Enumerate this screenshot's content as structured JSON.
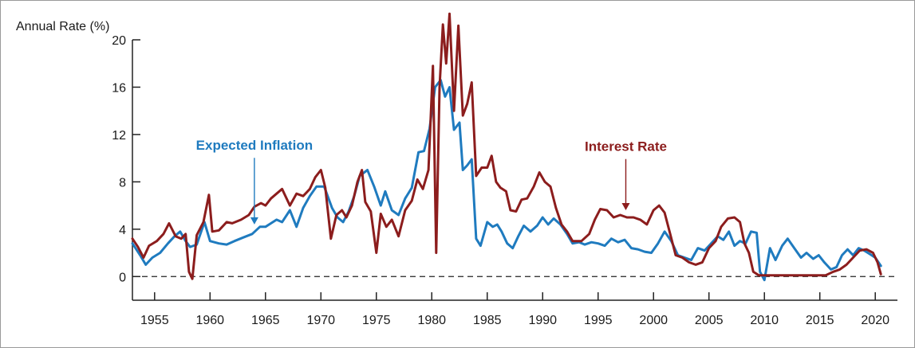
{
  "chart_data": {
    "type": "line",
    "ylabel": "Annual Rate (%)",
    "xlim": [
      1953,
      2022
    ],
    "ylim": [
      -2,
      20
    ],
    "yticks": [
      0,
      4,
      8,
      12,
      16,
      20
    ],
    "xticks": [
      1955,
      1960,
      1965,
      1970,
      1975,
      1980,
      1985,
      1990,
      1995,
      2000,
      2005,
      2010,
      2015,
      2020
    ],
    "zero_line": "dashed",
    "grid": false,
    "legend": "direct labels",
    "series": [
      {
        "name": "Expected Inflation",
        "color": "#1f7bbf",
        "label_at": [
          1964,
          10.7
        ],
        "arrow_to": [
          1964,
          4.4
        ],
        "points": [
          [
            1953.0,
            2.8
          ],
          [
            1953.7,
            1.8
          ],
          [
            1954.2,
            1.0
          ],
          [
            1954.8,
            1.6
          ],
          [
            1955.5,
            2.0
          ],
          [
            1956.2,
            2.8
          ],
          [
            1956.8,
            3.4
          ],
          [
            1957.3,
            3.8
          ],
          [
            1957.8,
            3.0
          ],
          [
            1958.2,
            2.5
          ],
          [
            1958.8,
            2.7
          ],
          [
            1959.5,
            4.6
          ],
          [
            1960.0,
            3.0
          ],
          [
            1960.8,
            2.8
          ],
          [
            1961.5,
            2.7
          ],
          [
            1962.2,
            3.0
          ],
          [
            1963.0,
            3.3
          ],
          [
            1963.8,
            3.6
          ],
          [
            1964.5,
            4.2
          ],
          [
            1965.0,
            4.2
          ],
          [
            1965.5,
            4.5
          ],
          [
            1966.0,
            4.8
          ],
          [
            1966.5,
            4.6
          ],
          [
            1967.2,
            5.6
          ],
          [
            1967.8,
            4.2
          ],
          [
            1968.4,
            5.8
          ],
          [
            1969.0,
            6.8
          ],
          [
            1969.6,
            7.6
          ],
          [
            1970.3,
            7.6
          ],
          [
            1971.0,
            5.8
          ],
          [
            1971.5,
            5.0
          ],
          [
            1972.0,
            4.6
          ],
          [
            1972.5,
            5.5
          ],
          [
            1973.0,
            6.8
          ],
          [
            1973.5,
            8.5
          ],
          [
            1974.2,
            9.0
          ],
          [
            1974.8,
            7.6
          ],
          [
            1975.4,
            6.0
          ],
          [
            1975.8,
            7.2
          ],
          [
            1976.4,
            5.6
          ],
          [
            1977.0,
            5.2
          ],
          [
            1977.6,
            6.6
          ],
          [
            1978.2,
            7.5
          ],
          [
            1978.8,
            10.5
          ],
          [
            1979.3,
            10.6
          ],
          [
            1979.8,
            12.5
          ],
          [
            1980.3,
            16.0
          ],
          [
            1980.8,
            16.6
          ],
          [
            1981.2,
            15.2
          ],
          [
            1981.6,
            16.0
          ],
          [
            1982.0,
            12.4
          ],
          [
            1982.5,
            13.0
          ],
          [
            1982.8,
            9.0
          ],
          [
            1983.2,
            9.4
          ],
          [
            1983.6,
            9.9
          ],
          [
            1984.0,
            3.2
          ],
          [
            1984.4,
            2.6
          ],
          [
            1985.0,
            4.6
          ],
          [
            1985.5,
            4.2
          ],
          [
            1985.9,
            4.4
          ],
          [
            1986.3,
            3.8
          ],
          [
            1986.8,
            2.8
          ],
          [
            1987.3,
            2.4
          ],
          [
            1987.8,
            3.4
          ],
          [
            1988.3,
            4.3
          ],
          [
            1988.9,
            3.8
          ],
          [
            1989.5,
            4.3
          ],
          [
            1990.0,
            5.0
          ],
          [
            1990.5,
            4.4
          ],
          [
            1991.0,
            4.9
          ],
          [
            1991.6,
            4.4
          ],
          [
            1992.2,
            3.6
          ],
          [
            1992.7,
            2.8
          ],
          [
            1993.3,
            2.9
          ],
          [
            1993.8,
            2.7
          ],
          [
            1994.4,
            2.9
          ],
          [
            1995.0,
            2.8
          ],
          [
            1995.6,
            2.6
          ],
          [
            1996.2,
            3.2
          ],
          [
            1996.8,
            2.9
          ],
          [
            1997.4,
            3.1
          ],
          [
            1998.0,
            2.4
          ],
          [
            1998.6,
            2.3
          ],
          [
            1999.2,
            2.1
          ],
          [
            1999.8,
            2.0
          ],
          [
            2000.4,
            2.8
          ],
          [
            2001.0,
            3.8
          ],
          [
            2001.6,
            3.0
          ],
          [
            2002.2,
            1.8
          ],
          [
            2002.8,
            1.6
          ],
          [
            2003.4,
            1.4
          ],
          [
            2004.0,
            2.4
          ],
          [
            2004.6,
            2.2
          ],
          [
            2005.2,
            2.8
          ],
          [
            2005.8,
            3.4
          ],
          [
            2006.3,
            3.1
          ],
          [
            2006.8,
            3.8
          ],
          [
            2007.3,
            2.6
          ],
          [
            2007.8,
            3.0
          ],
          [
            2008.3,
            2.8
          ],
          [
            2008.8,
            3.8
          ],
          [
            2009.3,
            3.7
          ],
          [
            2009.6,
            0.4
          ],
          [
            2010.0,
            -0.3
          ],
          [
            2010.5,
            2.4
          ],
          [
            2011.0,
            1.4
          ],
          [
            2011.6,
            2.6
          ],
          [
            2012.1,
            3.2
          ],
          [
            2012.7,
            2.4
          ],
          [
            2013.3,
            1.6
          ],
          [
            2013.8,
            2.0
          ],
          [
            2014.4,
            1.5
          ],
          [
            2014.9,
            1.8
          ],
          [
            2015.4,
            1.2
          ],
          [
            2016.0,
            0.6
          ],
          [
            2016.5,
            0.8
          ],
          [
            2017.0,
            1.8
          ],
          [
            2017.5,
            2.3
          ],
          [
            2018.0,
            1.8
          ],
          [
            2018.5,
            2.4
          ],
          [
            2019.0,
            2.2
          ],
          [
            2019.5,
            1.9
          ],
          [
            2020.0,
            1.6
          ],
          [
            2020.5,
            0.9
          ]
        ]
      },
      {
        "name": "Interest Rate",
        "color": "#8c1d1d",
        "label_at": [
          1997.5,
          10.6
        ],
        "arrow_to": [
          1997.5,
          5.6
        ],
        "points": [
          [
            1953.0,
            3.2
          ],
          [
            1953.5,
            2.5
          ],
          [
            1954.0,
            1.6
          ],
          [
            1954.5,
            2.6
          ],
          [
            1955.2,
            3.0
          ],
          [
            1955.8,
            3.6
          ],
          [
            1956.3,
            4.5
          ],
          [
            1956.9,
            3.4
          ],
          [
            1957.4,
            3.2
          ],
          [
            1957.8,
            3.6
          ],
          [
            1958.1,
            0.4
          ],
          [
            1958.4,
            -0.2
          ],
          [
            1958.8,
            3.5
          ],
          [
            1959.4,
            4.6
          ],
          [
            1959.9,
            6.9
          ],
          [
            1960.2,
            3.8
          ],
          [
            1960.8,
            3.9
          ],
          [
            1961.5,
            4.6
          ],
          [
            1962.0,
            4.5
          ],
          [
            1962.8,
            4.8
          ],
          [
            1963.5,
            5.2
          ],
          [
            1964.0,
            5.9
          ],
          [
            1964.6,
            6.2
          ],
          [
            1965.0,
            6.0
          ],
          [
            1965.5,
            6.6
          ],
          [
            1966.0,
            7.0
          ],
          [
            1966.5,
            7.4
          ],
          [
            1967.2,
            6.0
          ],
          [
            1967.8,
            7.0
          ],
          [
            1968.4,
            6.8
          ],
          [
            1969.0,
            7.4
          ],
          [
            1969.5,
            8.4
          ],
          [
            1970.0,
            9.0
          ],
          [
            1970.4,
            7.5
          ],
          [
            1970.9,
            3.2
          ],
          [
            1971.4,
            5.2
          ],
          [
            1971.9,
            5.6
          ],
          [
            1972.3,
            5.0
          ],
          [
            1972.8,
            6.0
          ],
          [
            1973.3,
            8.0
          ],
          [
            1973.7,
            9.0
          ],
          [
            1974.0,
            6.3
          ],
          [
            1974.5,
            5.5
          ],
          [
            1975.0,
            2.0
          ],
          [
            1975.4,
            5.3
          ],
          [
            1975.9,
            4.2
          ],
          [
            1976.4,
            4.8
          ],
          [
            1977.0,
            3.4
          ],
          [
            1977.6,
            5.6
          ],
          [
            1978.2,
            6.4
          ],
          [
            1978.7,
            8.2
          ],
          [
            1979.2,
            7.4
          ],
          [
            1979.7,
            9.0
          ],
          [
            1980.1,
            17.8
          ],
          [
            1980.4,
            2.0
          ],
          [
            1980.7,
            16.0
          ],
          [
            1981.0,
            21.3
          ],
          [
            1981.3,
            18.0
          ],
          [
            1981.6,
            22.2
          ],
          [
            1982.0,
            14.0
          ],
          [
            1982.4,
            21.2
          ],
          [
            1982.8,
            13.6
          ],
          [
            1983.2,
            14.6
          ],
          [
            1983.6,
            16.4
          ],
          [
            1984.0,
            8.5
          ],
          [
            1984.5,
            9.2
          ],
          [
            1985.0,
            9.2
          ],
          [
            1985.4,
            10.2
          ],
          [
            1985.8,
            8.0
          ],
          [
            1986.2,
            7.5
          ],
          [
            1986.7,
            7.2
          ],
          [
            1987.1,
            5.6
          ],
          [
            1987.6,
            5.5
          ],
          [
            1988.1,
            6.5
          ],
          [
            1988.6,
            6.6
          ],
          [
            1989.2,
            7.6
          ],
          [
            1989.7,
            8.8
          ],
          [
            1990.2,
            8.0
          ],
          [
            1990.7,
            7.6
          ],
          [
            1991.2,
            5.8
          ],
          [
            1991.7,
            4.4
          ],
          [
            1992.2,
            3.8
          ],
          [
            1992.7,
            3.0
          ],
          [
            1993.5,
            3.0
          ],
          [
            1994.2,
            3.6
          ],
          [
            1994.7,
            4.8
          ],
          [
            1995.2,
            5.7
          ],
          [
            1995.8,
            5.6
          ],
          [
            1996.4,
            5.0
          ],
          [
            1997.0,
            5.2
          ],
          [
            1997.6,
            5.0
          ],
          [
            1998.2,
            5.0
          ],
          [
            1998.8,
            4.8
          ],
          [
            1999.4,
            4.4
          ],
          [
            2000.0,
            5.6
          ],
          [
            2000.5,
            6.0
          ],
          [
            2001.0,
            5.4
          ],
          [
            2001.5,
            3.6
          ],
          [
            2002.0,
            1.8
          ],
          [
            2002.6,
            1.6
          ],
          [
            2003.2,
            1.2
          ],
          [
            2003.8,
            1.0
          ],
          [
            2004.4,
            1.2
          ],
          [
            2005.0,
            2.4
          ],
          [
            2005.6,
            3.0
          ],
          [
            2006.1,
            4.2
          ],
          [
            2006.7,
            4.9
          ],
          [
            2007.3,
            5.0
          ],
          [
            2007.8,
            4.6
          ],
          [
            2008.2,
            2.8
          ],
          [
            2008.6,
            2.0
          ],
          [
            2009.0,
            0.4
          ],
          [
            2009.5,
            0.1
          ],
          [
            2010.5,
            0.1
          ],
          [
            2011.5,
            0.1
          ],
          [
            2012.5,
            0.1
          ],
          [
            2013.5,
            0.1
          ],
          [
            2014.5,
            0.1
          ],
          [
            2015.5,
            0.1
          ],
          [
            2016.2,
            0.4
          ],
          [
            2016.8,
            0.6
          ],
          [
            2017.4,
            1.0
          ],
          [
            2018.0,
            1.6
          ],
          [
            2018.6,
            2.2
          ],
          [
            2019.2,
            2.3
          ],
          [
            2019.8,
            2.0
          ],
          [
            2020.2,
            1.2
          ],
          [
            2020.5,
            0.2
          ]
        ]
      }
    ]
  }
}
